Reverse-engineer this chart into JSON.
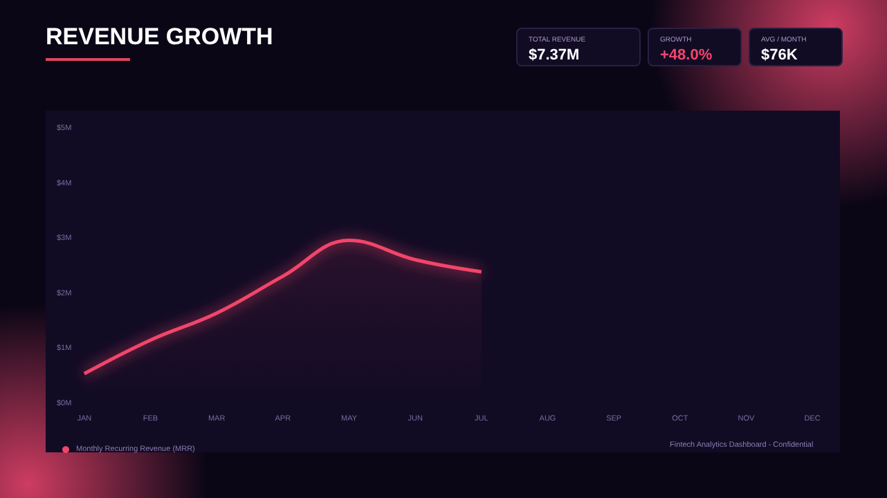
{
  "chart_data": {
    "type": "area",
    "title": "REVENUE GROWTH",
    "categories": [
      "JAN",
      "FEB",
      "MAR",
      "APR",
      "MAY",
      "JUN",
      "JUL",
      "AUG",
      "SEP",
      "OCT",
      "NOV",
      "DEC"
    ],
    "series": [
      {
        "name": "Monthly Recurring Revenue (MRR)",
        "color": "#f2456b",
        "values": [
          0.55,
          1.16,
          1.65,
          2.32,
          2.97,
          2.62,
          2.4,
          null,
          null,
          null,
          null,
          null
        ]
      }
    ],
    "ylim": [
      0,
      5
    ],
    "yticks": [
      {
        "value": 0,
        "label": "$0M"
      },
      {
        "value": 1,
        "label": "$1M"
      },
      {
        "value": 2,
        "label": "$2M"
      },
      {
        "value": 3,
        "label": "$3M"
      },
      {
        "value": 4,
        "label": "$4M"
      },
      {
        "value": 5,
        "label": "$5M"
      }
    ],
    "grid": false,
    "legend": "bottom left",
    "annotations": [
      "TOTAL REVENUE",
      "$7.37M",
      "GROWTH",
      "+48.0%",
      "AVG / MONTH",
      "$76K",
      "Fintech Analytics Dashboard - Confidential"
    ]
  }
}
